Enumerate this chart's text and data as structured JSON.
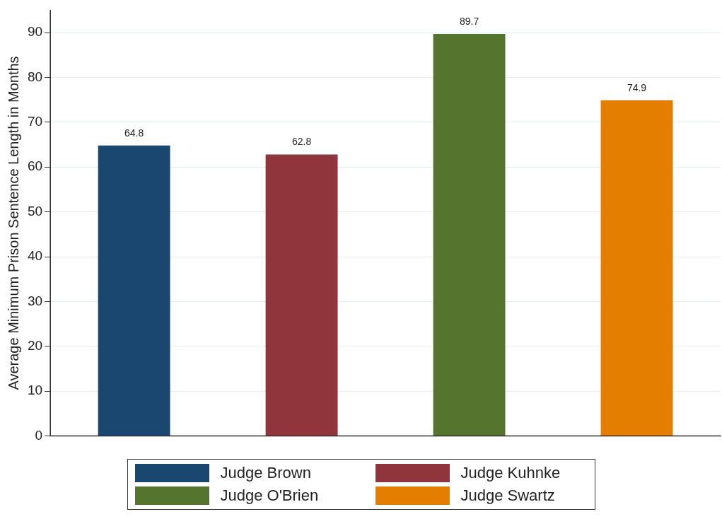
{
  "chart_data": {
    "type": "bar",
    "ylabel": "Average Minimum Prison Sentence Length in Months",
    "categories": [
      null,
      null,
      null,
      null
    ],
    "series": [
      {
        "name": "Judge Brown",
        "color": "#1a476f",
        "values": [
          64.8,
          null,
          null,
          null
        ]
      },
      {
        "name": "Judge Kuhnke",
        "color": "#90353b",
        "values": [
          null,
          62.8,
          null,
          null
        ]
      },
      {
        "name": "Judge O'Brien",
        "color": "#55752f",
        "values": [
          null,
          null,
          89.7,
          null
        ]
      },
      {
        "name": "Judge Swartz",
        "color": "#e37e00",
        "values": [
          null,
          null,
          null,
          74.9
        ]
      }
    ],
    "ylim": [
      0,
      95
    ],
    "yticks": [
      0,
      10,
      20,
      30,
      40,
      50,
      60,
      70,
      80,
      90
    ],
    "grid": "y",
    "legend": "bottom",
    "data_labels": true
  }
}
